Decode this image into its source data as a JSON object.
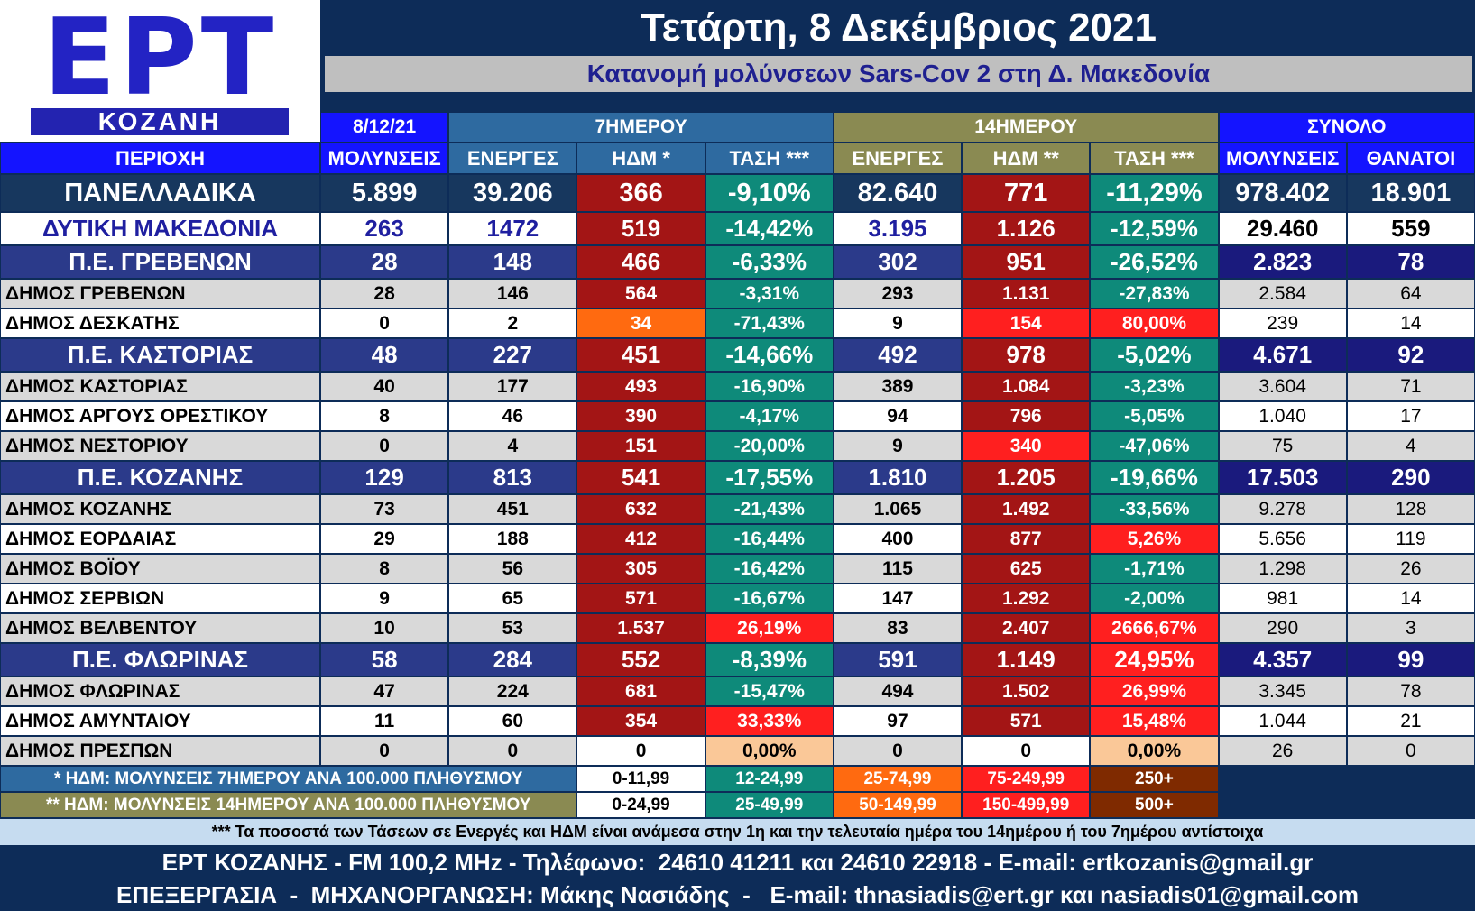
{
  "header": {
    "logo": "ΕΡΤ",
    "logo_sub": "ΚΟΖΑΝΗ",
    "title": "Τετάρτη, 8 Δεκέμβριος 2021",
    "subtitle": "Κατανομή μολύνσεων Sars-Cov 2 στη Δ. Μακεδονία"
  },
  "table": {
    "group_headers": [
      "8/12/21",
      "7ΗΜΕΡΟΥ",
      "14ΗΜΕΡΟΥ",
      "ΣΥΝΟΛΟ"
    ],
    "columns": [
      "ΠΕΡΙΟΧΗ",
      "ΜΟΛΥΝΣΕΙΣ",
      "ΕΝΕΡΓΕΣ",
      "ΗΔΜ *",
      "ΤΑΣΗ ***",
      "ΕΝΕΡΓΕΣ",
      "ΗΔΜ **",
      "ΤΑΣΗ ***",
      "ΜΟΛΥΝΣΕΙΣ",
      "ΘΑΝΑΤΟΙ"
    ],
    "rows": [
      [
        "ΠΑΝΕΛΛΑΔΙΚΑ",
        "5.899",
        "39.206",
        "366",
        "-9,10%",
        "82.640",
        "771",
        "-11,29%",
        "978.402",
        "18.901"
      ],
      [
        "ΔΥΤΙΚΗ ΜΑΚΕΔΟΝΙΑ",
        "263",
        "1472",
        "519",
        "-14,42%",
        "3.195",
        "1.126",
        "-12,59%",
        "29.460",
        "559"
      ],
      [
        "Π.Ε. ΓΡΕΒΕΝΩΝ",
        "28",
        "148",
        "466",
        "-6,33%",
        "302",
        "951",
        "-26,52%",
        "2.823",
        "78"
      ],
      [
        "ΔΗΜΟΣ ΓΡΕΒΕΝΩΝ",
        "28",
        "146",
        "564",
        "-3,31%",
        "293",
        "1.131",
        "-27,83%",
        "2.584",
        "64"
      ],
      [
        "ΔΗΜΟΣ ΔΕΣΚΑΤΗΣ",
        "0",
        "2",
        "34",
        "-71,43%",
        "9",
        "154",
        "80,00%",
        "239",
        "14"
      ],
      [
        "Π.Ε. ΚΑΣΤΟΡΙΑΣ",
        "48",
        "227",
        "451",
        "-14,66%",
        "492",
        "978",
        "-5,02%",
        "4.671",
        "92"
      ],
      [
        "ΔΗΜΟΣ ΚΑΣΤΟΡΙΑΣ",
        "40",
        "177",
        "493",
        "-16,90%",
        "389",
        "1.084",
        "-3,23%",
        "3.604",
        "71"
      ],
      [
        "ΔΗΜΟΣ ΑΡΓΟΥΣ ΟΡΕΣΤΙΚΟΥ",
        "8",
        "46",
        "390",
        "-4,17%",
        "94",
        "796",
        "-5,05%",
        "1.040",
        "17"
      ],
      [
        "ΔΗΜΟΣ ΝΕΣΤΟΡΙΟΥ",
        "0",
        "4",
        "151",
        "-20,00%",
        "9",
        "340",
        "-47,06%",
        "75",
        "4"
      ],
      [
        "Π.Ε. ΚΟΖΑΝΗΣ",
        "129",
        "813",
        "541",
        "-17,55%",
        "1.810",
        "1.205",
        "-19,66%",
        "17.503",
        "290"
      ],
      [
        "ΔΗΜΟΣ ΚΟΖΑΝΗΣ",
        "73",
        "451",
        "632",
        "-21,43%",
        "1.065",
        "1.492",
        "-33,56%",
        "9.278",
        "128"
      ],
      [
        "ΔΗΜΟΣ ΕΟΡΔΑΙΑΣ",
        "29",
        "188",
        "412",
        "-16,44%",
        "400",
        "877",
        "5,26%",
        "5.656",
        "119"
      ],
      [
        "ΔΗΜΟΣ ΒΟΪΟΥ",
        "8",
        "56",
        "305",
        "-16,42%",
        "115",
        "625",
        "-1,71%",
        "1.298",
        "26"
      ],
      [
        "ΔΗΜΟΣ ΣΕΡΒΙΩΝ",
        "9",
        "65",
        "571",
        "-16,67%",
        "147",
        "1.292",
        "-2,00%",
        "981",
        "14"
      ],
      [
        "ΔΗΜΟΣ ΒΕΛΒΕΝΤΟΥ",
        "10",
        "53",
        "1.537",
        "26,19%",
        "83",
        "2.407",
        "2666,67%",
        "290",
        "3"
      ],
      [
        "Π.Ε. ΦΛΩΡΙΝΑΣ",
        "58",
        "284",
        "552",
        "-8,39%",
        "591",
        "1.149",
        "24,95%",
        "4.357",
        "99"
      ],
      [
        "ΔΗΜΟΣ ΦΛΩΡΙΝΑΣ",
        "47",
        "224",
        "681",
        "-15,47%",
        "494",
        "1.502",
        "26,99%",
        "3.345",
        "78"
      ],
      [
        "ΔΗΜΟΣ ΑΜΥΝΤΑΙΟΥ",
        "11",
        "60",
        "354",
        "33,33%",
        "97",
        "571",
        "15,48%",
        "1.044",
        "21"
      ],
      [
        "ΔΗΜΟΣ ΠΡΕΣΠΩΝ",
        "0",
        "0",
        "0",
        "0,00%",
        "0",
        "0",
        "0,00%",
        "26",
        "0"
      ]
    ]
  },
  "legend": {
    "rows": [
      {
        "label": "* ΗΔΜ: ΜΟΛΥΝΣΕΙΣ 7ΗΜΕΡΟΥ ΑΝΑ 100.000 ΠΛΗΘΥΣΜΟΥ",
        "ranges": [
          "0-11,99",
          "12-24,99",
          "25-74,99",
          "75-249,99",
          "250+"
        ]
      },
      {
        "label": "** ΗΔΜ: ΜΟΛΥΝΣΕΙΣ 14ΗΜΕΡΟΥ ΑΝΑ 100.000 ΠΛΗΘΥΣΜΟΥ",
        "ranges": [
          "0-24,99",
          "25-49,99",
          "50-149,99",
          "150-499,99",
          "500+"
        ]
      }
    ]
  },
  "footer": {
    "note": "*** Τα ποσοστά των Τάσεων σε Ενεργές και ΗΔΜ είναι ανάμεσα στην 1η και την τελευταία ημέρα του 14ημέρου ή του 7ημέρου αντίστοιχα",
    "lines": [
      "ΕΡΤ ΚΟΖΑΝΗΣ - FM 100,2 MHz - Τηλέφωνο:  24610 41211 και 24610 22918 - E-mail: ertkozanis@gmail.gr",
      "ΕΠΕΞΕΡΓΑΣΙΑ  -  ΜΗΧΑΝΟΡΓΑΝΩΣΗ: Μάκης Νασιάδης  -   E-mail: thnasiadis@ert.gr και nasiadis01@gmail.com"
    ]
  }
}
